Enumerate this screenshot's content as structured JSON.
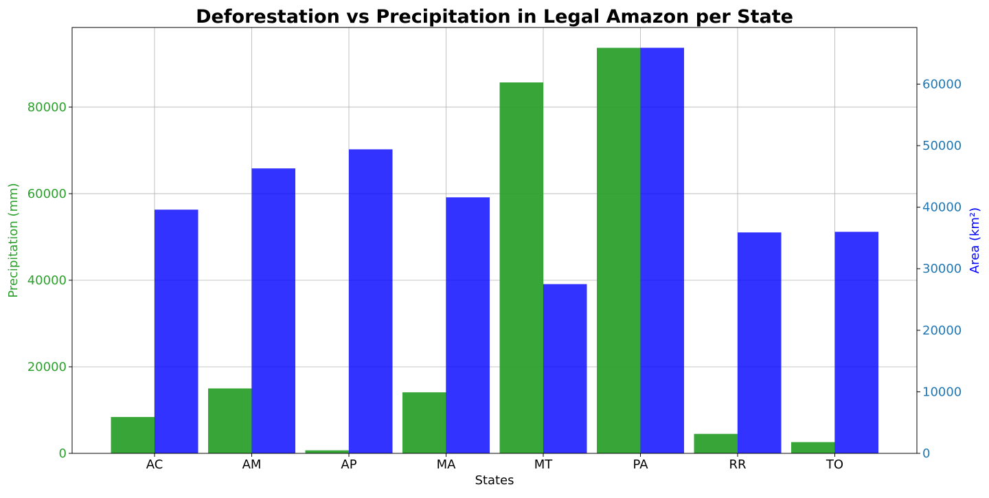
{
  "chart_data": {
    "type": "bar",
    "title": "Deforestation vs Precipitation in Legal Amazon per State",
    "xlabel": "States",
    "categories": [
      "AC",
      "AM",
      "AP",
      "MA",
      "MT",
      "PA",
      "RR",
      "TO"
    ],
    "series": [
      {
        "axis": "left",
        "color": "#2ca02c",
        "values": [
          8400,
          15000,
          700,
          14100,
          85700,
          93700,
          4500,
          2600
        ]
      },
      {
        "axis": "right",
        "color": "#0000ff",
        "values": [
          39600,
          46300,
          49400,
          41600,
          27500,
          65900,
          35900,
          36000
        ]
      }
    ],
    "y_left": {
      "label": "Precipitation (mm)",
      "label_color": "#2ca02c",
      "tick_color": "#2ca02c",
      "range": [
        0,
        98400
      ],
      "ticks": [
        0,
        20000,
        40000,
        60000,
        80000
      ]
    },
    "y_right": {
      "label": "Area (km²)",
      "label_color": "#0000ff",
      "tick_color": "#1f77b4",
      "range": [
        0,
        69200
      ],
      "ticks": [
        0,
        10000,
        20000,
        30000,
        40000,
        50000,
        60000
      ]
    },
    "grid": true,
    "legend": "none"
  }
}
